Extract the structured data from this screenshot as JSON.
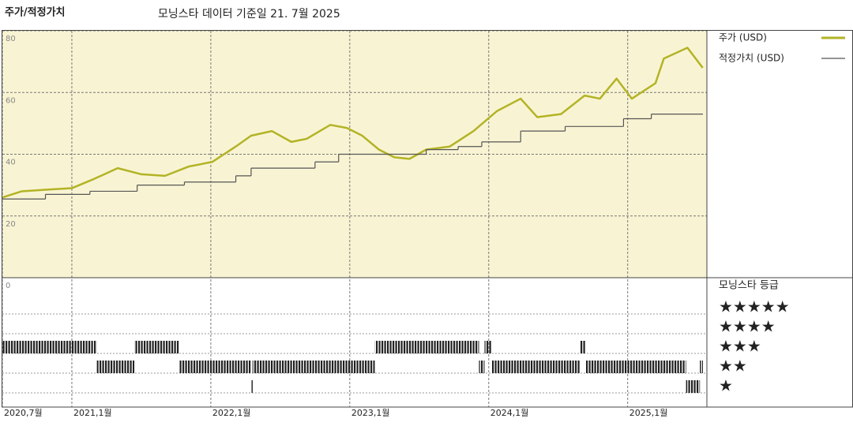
{
  "chart_data": {
    "type": "line",
    "title": "주가/적정가치",
    "subtitle": "모닝스타 데이터 기준일 21. 7월 2025",
    "xlim": [
      2020.5,
      2025.57
    ],
    "xticks": [
      {
        "value": 2020.5,
        "label": "2020,7월"
      },
      {
        "value": 2021,
        "label": "2021,1월"
      },
      {
        "value": 2022,
        "label": "2022,1월"
      },
      {
        "value": 2023,
        "label": "2023,1월"
      },
      {
        "value": 2024,
        "label": "2024,1월"
      },
      {
        "value": 2025,
        "label": "2025,1월"
      }
    ],
    "ylim": [
      0,
      80
    ],
    "yticks": [
      0,
      20,
      40,
      60,
      80
    ],
    "grid": true,
    "background": "#f8f4d3",
    "series": [
      {
        "name": "주가 (USD)",
        "color": "#b3b326",
        "style": "line",
        "x": [
          2020.5,
          2020.64,
          2020.81,
          2021.0,
          2021.16,
          2021.33,
          2021.5,
          2021.67,
          2021.84,
          2022.01,
          2022.18,
          2022.29,
          2022.44,
          2022.58,
          2022.69,
          2022.86,
          2022.98,
          2023.09,
          2023.21,
          2023.32,
          2023.43,
          2023.55,
          2023.72,
          2023.89,
          2024.06,
          2024.23,
          2024.35,
          2024.52,
          2024.69,
          2024.8,
          2024.92,
          2025.03,
          2025.2,
          2025.26,
          2025.43,
          2025.54
        ],
        "values": [
          26,
          28,
          28.5,
          29,
          32,
          35.5,
          33.5,
          33,
          36,
          37.5,
          42.5,
          46,
          47.5,
          44,
          45,
          49.5,
          48.5,
          46,
          41.5,
          39,
          38.5,
          41.5,
          42.5,
          47.5,
          54,
          58,
          52,
          53,
          59,
          58,
          64.5,
          58,
          63,
          71,
          74.5,
          68
        ]
      },
      {
        "name": "적정가치 (USD)",
        "color": "#555555",
        "style": "step",
        "x": [
          2020.5,
          2020.81,
          2021.13,
          2021.47,
          2021.81,
          2022.18,
          2022.29,
          2022.75,
          2022.92,
          2023.55,
          2023.78,
          2023.95,
          2024.23,
          2024.55,
          2024.97,
          2025.17
        ],
        "values": [
          25.5,
          27,
          28,
          30,
          31,
          33,
          35.5,
          37.5,
          40,
          41.5,
          42.5,
          44,
          47.5,
          49,
          51.5,
          53
        ]
      }
    ],
    "ratings": {
      "title": "모닝스타 등급",
      "levels": [
        "★★★★★",
        "★★★★",
        "★★★",
        "★★",
        "★"
      ],
      "x": [
        2020.5,
        2021.18,
        2021.45,
        2021.77,
        2022.29,
        2022.3,
        2023.18,
        2023.93,
        2023.97,
        2024.02,
        2024.66,
        2024.7,
        2025.42,
        2025.52
      ],
      "values": [
        3,
        2,
        3,
        2,
        1,
        2,
        3,
        2,
        3,
        2,
        3,
        2,
        1,
        2
      ]
    }
  }
}
